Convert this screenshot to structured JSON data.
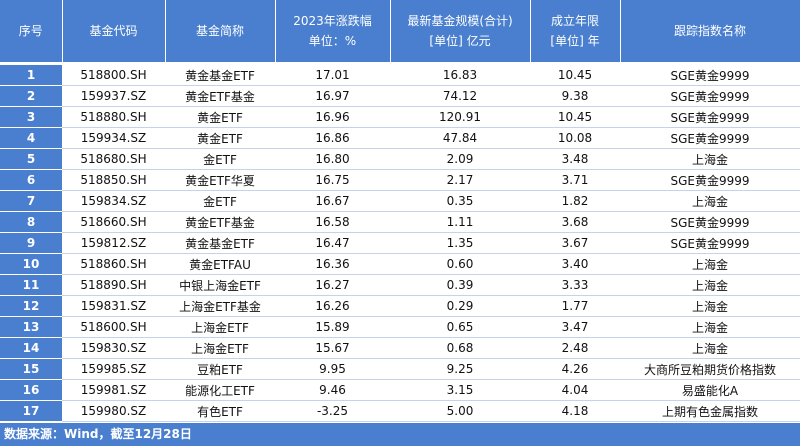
{
  "table": {
    "headers": [
      [
        "序号"
      ],
      [
        "基金代码"
      ],
      [
        "基金简称"
      ],
      [
        "2023年涨跌幅",
        "单位：%"
      ],
      [
        "最新基金规模(合计)",
        "[单位] 亿元"
      ],
      [
        "成立年限",
        "[单位] 年"
      ],
      [
        "跟踪指数名称"
      ]
    ],
    "rows": [
      [
        "1",
        "518800.SH",
        "黄金基金ETF",
        "17.01",
        "16.83",
        "10.45",
        "SGE黄金9999"
      ],
      [
        "2",
        "159937.SZ",
        "黄金ETF基金",
        "16.97",
        "74.12",
        "9.38",
        "SGE黄金9999"
      ],
      [
        "3",
        "518880.SH",
        "黄金ETF",
        "16.96",
        "120.91",
        "10.45",
        "SGE黄金9999"
      ],
      [
        "4",
        "159934.SZ",
        "黄金ETF",
        "16.86",
        "47.84",
        "10.08",
        "SGE黄金9999"
      ],
      [
        "5",
        "518680.SH",
        "金ETF",
        "16.80",
        "2.09",
        "3.48",
        "上海金"
      ],
      [
        "6",
        "518850.SH",
        "黄金ETF华夏",
        "16.75",
        "2.17",
        "3.71",
        "SGE黄金9999"
      ],
      [
        "7",
        "159834.SZ",
        "金ETF",
        "16.67",
        "0.35",
        "1.82",
        "上海金"
      ],
      [
        "8",
        "518660.SH",
        "黄金ETF基金",
        "16.58",
        "1.11",
        "3.68",
        "SGE黄金9999"
      ],
      [
        "9",
        "159812.SZ",
        "黄金基金ETF",
        "16.47",
        "1.35",
        "3.67",
        "SGE黄金9999"
      ],
      [
        "10",
        "518860.SH",
        "黄金ETFAU",
        "16.36",
        "0.60",
        "3.40",
        "上海金"
      ],
      [
        "11",
        "518890.SH",
        "中银上海金ETF",
        "16.27",
        "0.39",
        "3.33",
        "上海金"
      ],
      [
        "12",
        "159831.SZ",
        "上海金ETF基金",
        "16.26",
        "0.29",
        "1.77",
        "上海金"
      ],
      [
        "13",
        "518600.SH",
        "上海金ETF",
        "15.89",
        "0.65",
        "3.47",
        "上海金"
      ],
      [
        "14",
        "159830.SZ",
        "上海金ETF",
        "15.67",
        "0.68",
        "2.48",
        "上海金"
      ],
      [
        "15",
        "159985.SZ",
        "豆粕ETF",
        "9.95",
        "9.25",
        "4.26",
        "大商所豆粕期货价格指数"
      ],
      [
        "16",
        "159981.SZ",
        "能源化工ETF",
        "9.46",
        "3.15",
        "4.04",
        "易盛能化A"
      ],
      [
        "17",
        "159980.SZ",
        "有色ETF",
        "-3.25",
        "5.00",
        "4.18",
        "上期有色金属指数"
      ]
    ],
    "footer": "数据来源：Wind，截至12月28日"
  }
}
